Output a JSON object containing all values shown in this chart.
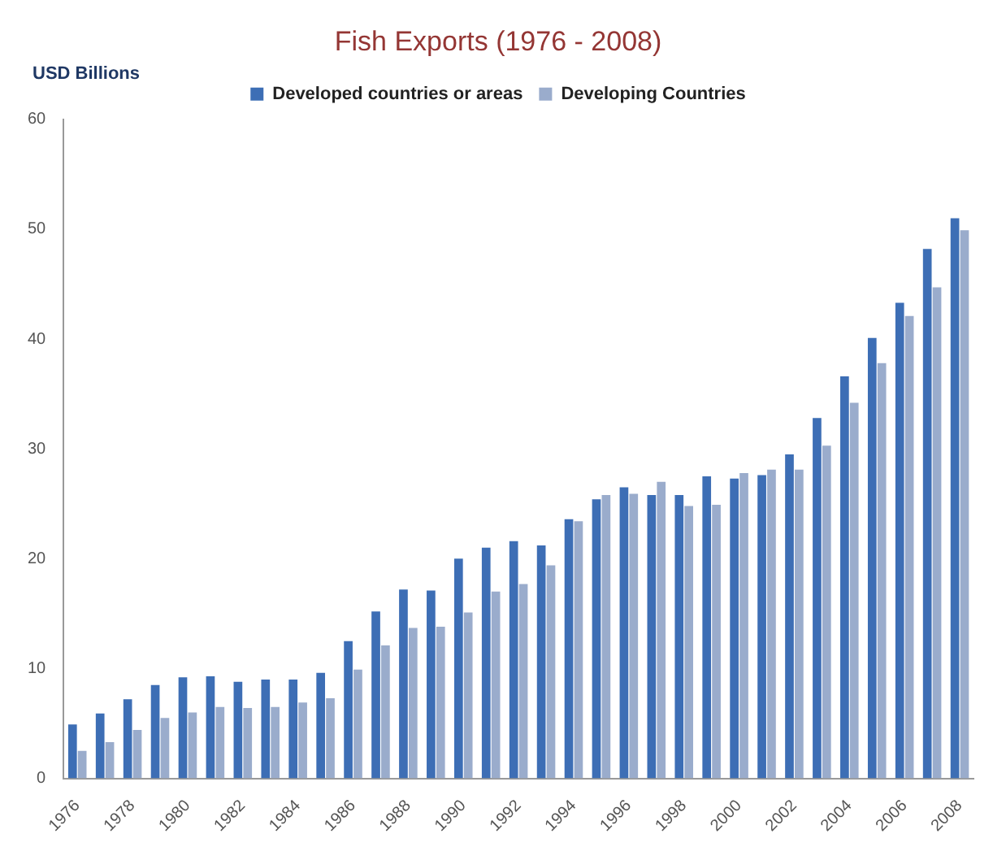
{
  "chart_data": {
    "type": "bar",
    "title": "Fish Exports (1976 - 2008)",
    "ylabel": "USD Billions",
    "categories": [
      "1976",
      null,
      "1978",
      null,
      "1980",
      null,
      "1982",
      null,
      "1984",
      null,
      "1986",
      null,
      "1988",
      null,
      "1990",
      null,
      "1992",
      null,
      "1994",
      null,
      "1996",
      null,
      "1998",
      null,
      "2000",
      null,
      "2002",
      null,
      "2004",
      null,
      "2006",
      null,
      "2008"
    ],
    "series": [
      {
        "name": "Developed countries or areas",
        "color": "#3d6eb5",
        "values": [
          4.9,
          5.9,
          7.2,
          8.5,
          9.2,
          9.3,
          8.8,
          9.0,
          9.0,
          9.6,
          12.5,
          15.2,
          17.2,
          17.1,
          20.0,
          21.0,
          21.6,
          21.2,
          23.6,
          25.4,
          26.5,
          25.8,
          25.8,
          27.5,
          27.3,
          27.6,
          29.5,
          32.8,
          36.6,
          40.1,
          43.3,
          48.2,
          51.0
        ]
      },
      {
        "name": "Developing Countries",
        "color": "#9aaccc",
        "values": [
          2.5,
          3.3,
          4.4,
          5.5,
          6.0,
          6.5,
          6.4,
          6.5,
          6.9,
          7.3,
          9.9,
          12.1,
          13.7,
          13.8,
          15.1,
          17.0,
          17.7,
          19.4,
          23.4,
          25.8,
          25.9,
          27.0,
          24.8,
          24.9,
          27.8,
          28.1,
          28.1,
          30.3,
          34.2,
          37.8,
          42.1,
          44.7,
          49.9
        ]
      }
    ],
    "ylim": [
      0,
      60
    ],
    "yticks": [
      0,
      10,
      20,
      30,
      40,
      50,
      60
    ],
    "grid": false,
    "legend": "top"
  }
}
